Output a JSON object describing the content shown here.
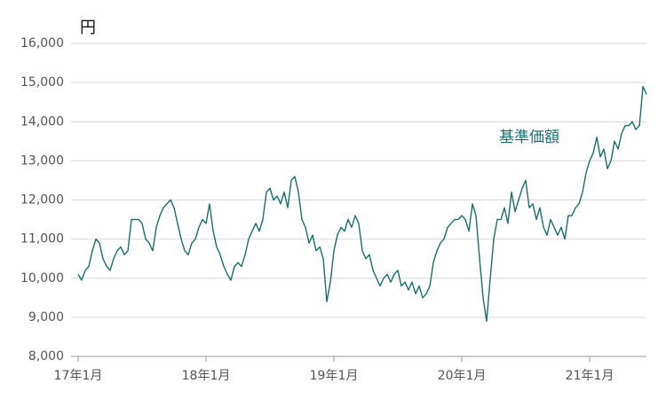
{
  "chart_data": {
    "type": "line",
    "y_label": "円",
    "annotation": "基準価額",
    "x": [
      0,
      0.33,
      0.67,
      1,
      1.33,
      1.67,
      2,
      2.33,
      2.67,
      3,
      3.33,
      3.67,
      4,
      4.33,
      4.67,
      5,
      5.33,
      5.67,
      6,
      6.33,
      6.67,
      7,
      7.33,
      7.67,
      8,
      8.33,
      8.67,
      9,
      9.33,
      9.67,
      10,
      10.33,
      10.67,
      11,
      11.33,
      11.67,
      12,
      12.33,
      12.67,
      13,
      13.33,
      13.67,
      14,
      14.33,
      14.67,
      15,
      15.33,
      15.67,
      16,
      16.33,
      16.67,
      17,
      17.33,
      17.67,
      18,
      18.33,
      18.67,
      19,
      19.33,
      19.67,
      20,
      20.33,
      20.67,
      21,
      21.33,
      21.67,
      22,
      22.33,
      22.67,
      23,
      23.33,
      23.67,
      24,
      24.33,
      24.67,
      25,
      25.33,
      25.67,
      26,
      26.33,
      26.67,
      27,
      27.33,
      27.67,
      28,
      28.33,
      28.67,
      29,
      29.33,
      29.67,
      30,
      30.33,
      30.67,
      31,
      31.33,
      31.67,
      32,
      32.33,
      32.67,
      33,
      33.33,
      33.67,
      34,
      34.33,
      34.67,
      35,
      35.33,
      35.67,
      36,
      36.33,
      36.67,
      37,
      37.33,
      37.67,
      38,
      38.33,
      38.67,
      39,
      39.33,
      39.67,
      40,
      40.33,
      40.67,
      41,
      41.33,
      41.67,
      42,
      42.33,
      42.67,
      43,
      43.33,
      43.67,
      44,
      44.33,
      44.67,
      45,
      45.33,
      45.67,
      46,
      46.33,
      46.67,
      47,
      47.33,
      47.67,
      48,
      48.33,
      48.67,
      49,
      49.33,
      49.67,
      50,
      50.33,
      50.67,
      51,
      51.33,
      51.67,
      52,
      52.33,
      52.67,
      53,
      53.33
    ],
    "series": [
      {
        "name": "基準価額",
        "color": "#17706e",
        "values": [
          10100,
          9950,
          10200,
          10300,
          10700,
          11000,
          10900,
          10500,
          10300,
          10200,
          10500,
          10700,
          10800,
          10600,
          10700,
          11500,
          11500,
          11500,
          11400,
          11000,
          10900,
          10700,
          11300,
          11600,
          11800,
          11900,
          12000,
          11800,
          11400,
          11000,
          10700,
          10600,
          10900,
          11000,
          11300,
          11500,
          11400,
          11900,
          11200,
          10800,
          10600,
          10300,
          10100,
          9950,
          10300,
          10400,
          10300,
          10600,
          11000,
          11200,
          11400,
          11200,
          11500,
          12200,
          12300,
          12000,
          12100,
          11900,
          12200,
          11800,
          12500,
          12600,
          12200,
          11500,
          11300,
          10900,
          11100,
          10700,
          10800,
          10500,
          9400,
          9900,
          10700,
          11100,
          11300,
          11200,
          11500,
          11300,
          11600,
          11400,
          10700,
          10500,
          10600,
          10200,
          10000,
          9800,
          10000,
          10100,
          9900,
          10100,
          10200,
          9800,
          9900,
          9700,
          9900,
          9600,
          9800,
          9500,
          9600,
          9800,
          10400,
          10700,
          10900,
          11000,
          11300,
          11400,
          11500,
          11500,
          11600,
          11500,
          11200,
          11900,
          11600,
          10500,
          9500,
          8900,
          10000,
          11000,
          11500,
          11500,
          11800,
          11400,
          12200,
          11700,
          12000,
          12300,
          12500,
          11800,
          11900,
          11500,
          11800,
          11300,
          11100,
          11500,
          11300,
          11100,
          11300,
          11000,
          11600,
          11600,
          11800,
          11900,
          12200,
          12700,
          13000,
          13200,
          13600,
          13100,
          13300,
          12800,
          13000,
          13500,
          13300,
          13700,
          13900,
          13900,
          14000,
          13800,
          13900,
          14900,
          14700
        ]
      }
    ],
    "xlim": [
      0,
      53.33
    ],
    "xticks": [
      {
        "value": 0,
        "label": "17年1月"
      },
      {
        "value": 12,
        "label": "18年1月"
      },
      {
        "value": 24,
        "label": "19年1月"
      },
      {
        "value": 36,
        "label": "20年1月"
      },
      {
        "value": 48,
        "label": "21年1月"
      }
    ],
    "ylim": [
      8000,
      16000
    ],
    "yticks": [
      {
        "value": 8000,
        "label": "8,000"
      },
      {
        "value": 9000,
        "label": "9,000"
      },
      {
        "value": 10000,
        "label": "10,000"
      },
      {
        "value": 11000,
        "label": "11,000"
      },
      {
        "value": 12000,
        "label": "12,000"
      },
      {
        "value": 13000,
        "label": "13,000"
      },
      {
        "value": 14000,
        "label": "14,000"
      },
      {
        "value": 15000,
        "label": "15,000"
      },
      {
        "value": 16000,
        "label": "16,000"
      }
    ],
    "grid": true
  }
}
